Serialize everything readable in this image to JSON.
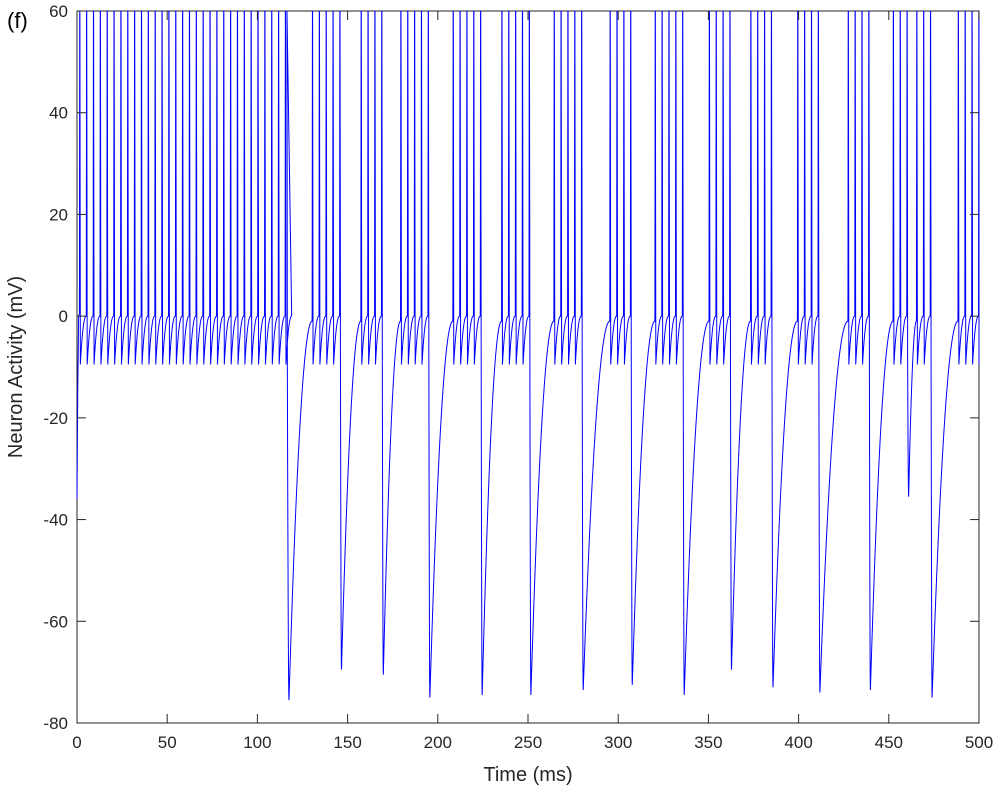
{
  "panel_label": "(f)",
  "chart_data": {
    "type": "line",
    "xlabel": "Time (ms)",
    "ylabel": "Neuron Activity (mV)",
    "xlim": [
      0,
      500
    ],
    "ylim": [
      -80,
      60
    ],
    "xticks": [
      0,
      50,
      100,
      150,
      200,
      250,
      300,
      350,
      400,
      450,
      500
    ],
    "yticks": [
      -80,
      -60,
      -40,
      -20,
      0,
      20,
      40,
      60
    ],
    "grid": false,
    "line_color": "#0000ff",
    "axis_color": "#262626",
    "series": [
      {
        "initial_value": -36,
        "regular_spiking_phase": {
          "x_range": [
            0,
            116
          ],
          "spike_times": [
            1.5,
            5.3,
            9.1,
            12.9,
            16.7,
            20.5,
            24.3,
            28.1,
            31.9,
            35.7,
            39.5,
            43.3,
            47.1,
            50.9,
            54.7,
            58.5,
            62.3,
            66.1,
            69.9,
            73.7,
            77.5,
            81.3,
            85.1,
            88.9,
            92.7,
            96.5,
            100.3,
            104.1,
            107.9,
            111.7,
            115.5
          ],
          "spike_peak": 60,
          "trough": -9.5,
          "plateau": 0
        },
        "bursts": [
          {
            "spikes": [
              130.5,
              134.3,
              138.1,
              141.9,
              145.7
            ],
            "trough": -69.5
          },
          {
            "spikes": [
              157.5,
              161.3,
              165.1,
              168.9
            ],
            "trough": -70.5
          },
          {
            "spikes": [
              179.5,
              183.3,
              187.1,
              190.9,
              194.7
            ],
            "trough": -75
          },
          {
            "spikes": [
              208.5,
              212.3,
              216.1,
              219.9,
              223.7
            ],
            "trough": -74.5
          },
          {
            "spikes": [
              235.5,
              239.3,
              243.1,
              246.9,
              250.7
            ],
            "trough": -74.5
          },
          {
            "spikes": [
              264.5,
              268.3,
              272.1,
              275.9,
              279.7
            ],
            "trough": -73.5
          },
          {
            "spikes": [
              295.5,
              299.3,
              303.1,
              306.9
            ],
            "trough": -72.5
          },
          {
            "spikes": [
              320.5,
              324.3,
              328.1,
              331.9,
              335.7
            ],
            "trough": -74.5
          },
          {
            "spikes": [
              350.5,
              354.3,
              358.1,
              361.9
            ],
            "trough": -69.5
          },
          {
            "spikes": [
              373.5,
              377.3,
              381.1,
              384.9
            ],
            "trough": -73
          },
          {
            "spikes": [
              399.5,
              403.3,
              407.1,
              410.9
            ],
            "trough": -74
          },
          {
            "spikes": [
              427.5,
              431.3,
              435.1,
              438.9
            ],
            "trough": -73.5
          },
          {
            "spikes": [
              452.5,
              456.3,
              460.1
            ],
            "trough": -35.5
          },
          {
            "spikes": [
              465.5,
              469.3,
              473.1
            ],
            "trough": -75
          },
          {
            "spikes": [
              488.5,
              492.3,
              496.1,
              499.9
            ],
            "trough": -9.5
          }
        ],
        "initial_hyperpolarization": {
          "x": 117.5,
          "trough": -75.5
        }
      }
    ]
  }
}
